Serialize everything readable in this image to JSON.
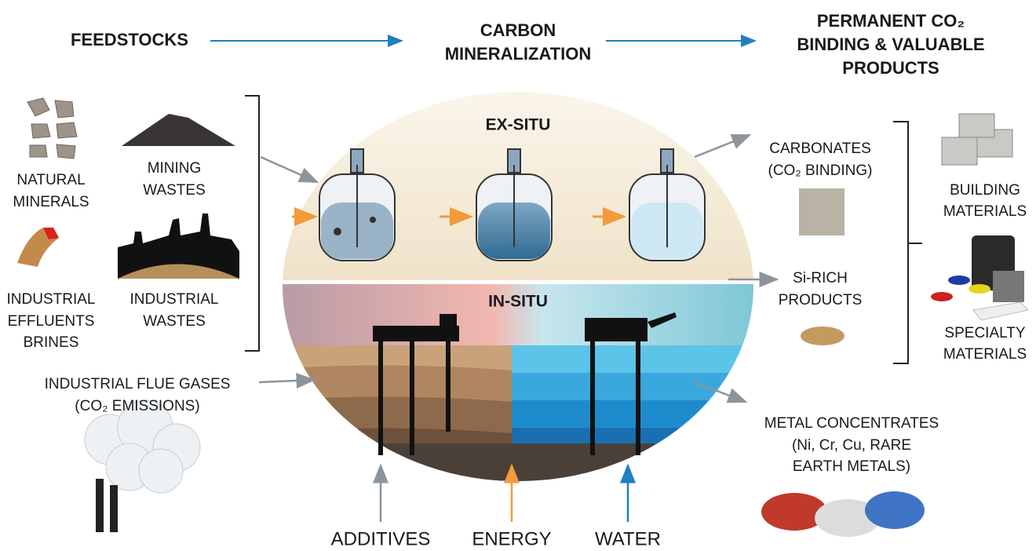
{
  "header": {
    "stages": [
      [
        "FEEDSTOCKS"
      ],
      [
        "CARBON",
        "MINERALIZATION"
      ],
      [
        "PERMANENT CO₂",
        "BINDING & VALUABLE",
        "PRODUCTS"
      ]
    ]
  },
  "feedstocks": [
    {
      "lines": [
        "NATURAL",
        "MINERALS"
      ]
    },
    {
      "lines": [
        "MINING",
        "WASTES"
      ]
    },
    {
      "lines": [
        "INDUSTRIAL",
        "EFFLUENTS",
        "BRINES"
      ]
    },
    {
      "lines": [
        "INDUSTRIAL",
        "WASTES"
      ]
    },
    {
      "lines": [
        "INDUSTRIAL FLUE GASES",
        "(CO₂ EMISSIONS)"
      ]
    }
  ],
  "processes": [
    "EX-SITU",
    "IN-SITU"
  ],
  "products": [
    {
      "lines": [
        "CARBONATES",
        "(CO₂ BINDING)"
      ]
    },
    {
      "lines": [
        "BUILDING",
        "MATERIALS"
      ]
    },
    {
      "lines": [
        "Si-RICH",
        "PRODUCTS"
      ]
    },
    {
      "lines": [
        "SPECIALTY",
        "MATERIALS"
      ]
    },
    {
      "lines": [
        "METAL CONCENTRATES",
        "(Ni, Cr, Cu, RARE",
        "EARTH METALS)"
      ]
    }
  ],
  "inputs": [
    "ADDITIVES",
    "ENERGY",
    "WATER"
  ]
}
